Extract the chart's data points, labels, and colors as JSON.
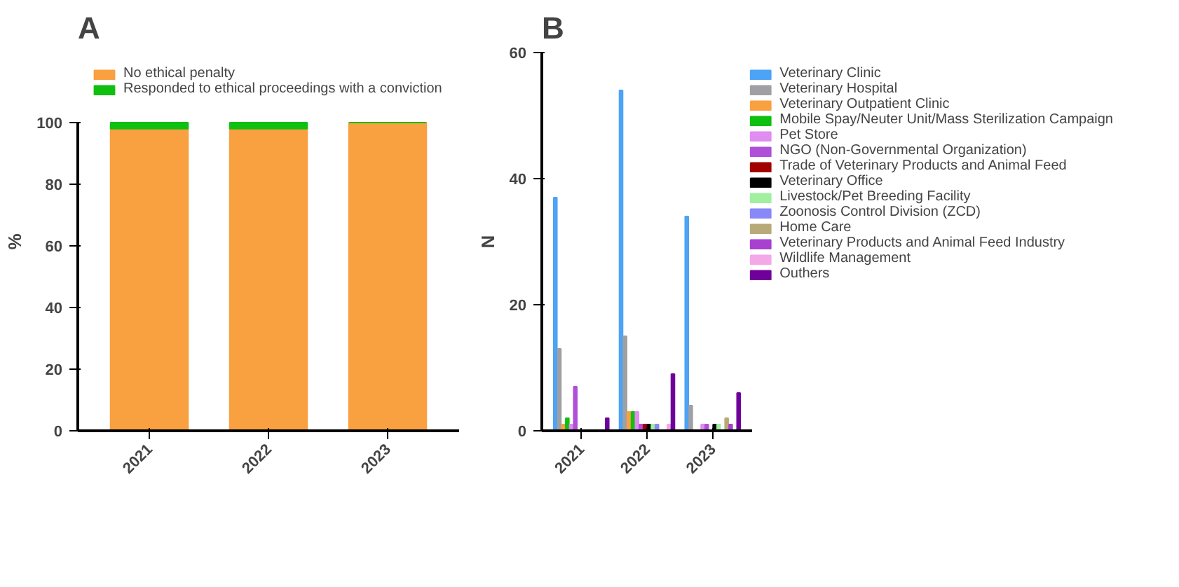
{
  "chart_data": [
    {
      "type": "bar",
      "title": "A",
      "ylabel": "%",
      "categories": [
        "2021",
        "2022",
        "2023"
      ],
      "stacked": true,
      "legend": "top",
      "grid": false,
      "ylim": [
        0,
        100
      ],
      "yticks": [
        0,
        20,
        40,
        60,
        80,
        100
      ],
      "series": [
        {
          "name": "No ethical penalty",
          "color": "#f9a040",
          "values": [
            98,
            98,
            100
          ]
        },
        {
          "name": "Responded to ethical proceedings with a conviction",
          "color": "#10c010",
          "values": [
            2,
            2,
            0
          ]
        }
      ]
    },
    {
      "type": "bar",
      "title": "B",
      "ylabel": "N",
      "categories": [
        "2021",
        "2022",
        "2023"
      ],
      "legend": "right",
      "grid": false,
      "ylim": [
        0,
        60
      ],
      "yticks": [
        0,
        20,
        40,
        60
      ],
      "series": [
        {
          "name": "Veterinary Clinic",
          "color": "#4da3f5",
          "values": [
            37,
            54,
            34
          ]
        },
        {
          "name": "Veterinary Hospital",
          "color": "#a0a0a4",
          "values": [
            13,
            15,
            4
          ]
        },
        {
          "name": "Veterinary Outpatient Clinic",
          "color": "#f9a040",
          "values": [
            1,
            3,
            0
          ]
        },
        {
          "name": "Mobile Spay/Neuter Unit/Mass Sterilization Campaign",
          "color": "#10c010",
          "values": [
            2,
            3,
            0
          ]
        },
        {
          "name": "Pet Store",
          "color": "#e08cf0",
          "values": [
            1,
            3,
            1
          ]
        },
        {
          "name": "NGO (Non-Governmental Organization)",
          "color": "#b050d8",
          "values": [
            7,
            1,
            1
          ]
        },
        {
          "name": "Trade of Veterinary Products and Animal Feed",
          "color": "#a00000",
          "values": [
            0,
            1,
            0
          ]
        },
        {
          "name": "Veterinary Office",
          "color": "#000000",
          "values": [
            0,
            1,
            1
          ]
        },
        {
          "name": "Livestock/Pet Breeding Facility",
          "color": "#a0f0a0",
          "values": [
            0,
            1,
            1
          ]
        },
        {
          "name": "Zoonosis Control Division (ZCD)",
          "color": "#8888f8",
          "values": [
            0,
            1,
            0
          ]
        },
        {
          "name": "Home Care",
          "color": "#b8aa78",
          "values": [
            0,
            0,
            2
          ]
        },
        {
          "name": "Veterinary Products and Animal Feed Industry",
          "color": "#a840d0",
          "values": [
            0,
            0,
            1
          ]
        },
        {
          "name": "Wildlife Management",
          "color": "#f4a8e8",
          "values": [
            0,
            1,
            0
          ]
        },
        {
          "name": "Outhers",
          "color": "#70009a",
          "values": [
            2,
            9,
            6
          ]
        }
      ]
    }
  ]
}
